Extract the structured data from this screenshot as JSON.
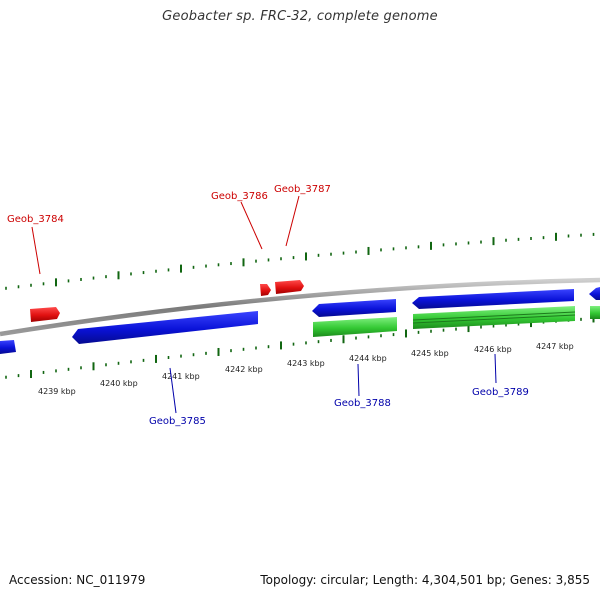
{
  "title": "Geobacter sp. FRC-32, complete genome",
  "accession": "Accession: NC_011979",
  "summary": "Topology: circular; Length: 4,304,501 bp; Genes: 3,855",
  "colors": {
    "forward_label": "#cc0000",
    "reverse_label": "#0000aa",
    "forward_gene": "#ee1111",
    "reverse_gene": "#0a13dd",
    "rna_gene": "#33cc33",
    "backbone": "#888888",
    "tick": "#116611"
  },
  "tick_labels": [
    "4239 kbp",
    "4240 kbp",
    "4241 kbp",
    "4242 kbp",
    "4243 kbp",
    "4244 kbp",
    "4245 kbp",
    "4246 kbp",
    "4247 kbp"
  ],
  "gene_labels": [
    {
      "name": "Geob_3784",
      "strand": "forward"
    },
    {
      "name": "Geob_3786",
      "strand": "forward"
    },
    {
      "name": "Geob_3787",
      "strand": "forward"
    },
    {
      "name": "Geob_3785",
      "strand": "reverse"
    },
    {
      "name": "Geob_3788",
      "strand": "reverse"
    },
    {
      "name": "Geob_3789",
      "strand": "reverse"
    }
  ]
}
